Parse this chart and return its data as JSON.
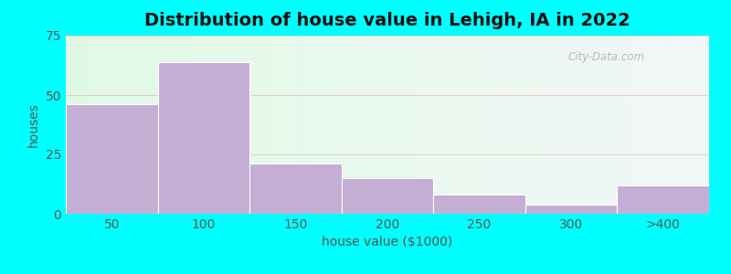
{
  "title": "Distribution of house value in Lehigh, IA in 2022",
  "xlabel": "house value ($1000)",
  "ylabel": "houses",
  "bar_labels": [
    "50",
    "100",
    "150",
    "200",
    "250",
    "300",
    ">400"
  ],
  "bar_values": [
    46,
    64,
    21,
    15,
    8,
    4,
    12
  ],
  "bar_color": "#c4aed4",
  "bar_edge_color": "#c4aed4",
  "background_color": "#00ffff",
  "ylim": [
    0,
    75
  ],
  "yticks": [
    0,
    25,
    50,
    75
  ],
  "grid_color": "#e8a0a0",
  "title_fontsize": 14,
  "axis_fontsize": 10,
  "tick_fontsize": 10,
  "bar_width": 1.0
}
